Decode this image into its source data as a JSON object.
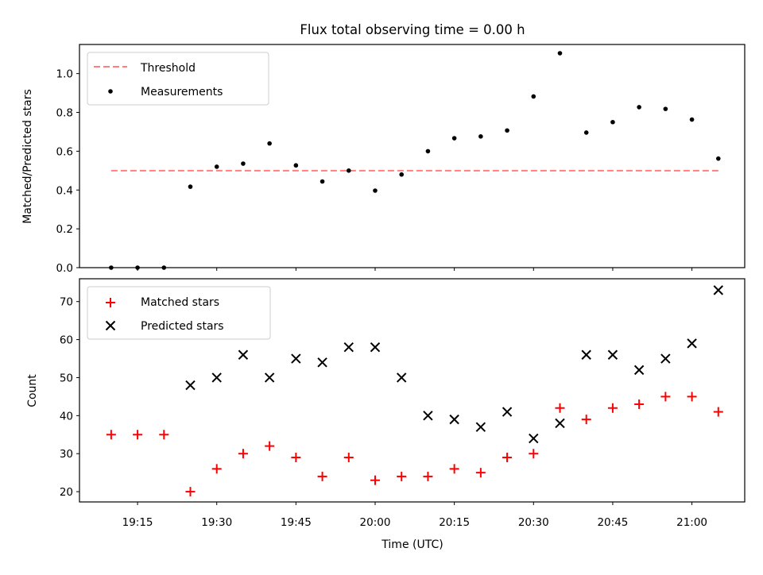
{
  "title": "Flux total observing time = 0.00 h",
  "colors": {
    "threshold": "#ff7f7f",
    "measurement": "#000000",
    "matched": "#ff0000",
    "predicted": "#000000"
  },
  "chart_data": [
    {
      "type": "scatter",
      "title": "Flux total observing time = 0.00 h",
      "xlabel": "",
      "ylabel": "Matched/Predicted stars",
      "ylim": [
        0,
        1.15
      ],
      "yticks": [
        "0.0",
        "0.2",
        "0.4",
        "0.6",
        "0.8",
        "1.0"
      ],
      "x": [
        "19:10",
        "19:15",
        "19:20",
        "19:25",
        "19:30",
        "19:35",
        "19:40",
        "19:45",
        "19:50",
        "19:55",
        "20:00",
        "20:05",
        "20:10",
        "20:15",
        "20:20",
        "20:25",
        "20:30",
        "20:35",
        "20:40",
        "20:45",
        "20:50",
        "20:55",
        "21:00",
        "21:05"
      ],
      "legend": {
        "location": "upper left",
        "entries": [
          "Threshold",
          "Measurements"
        ]
      },
      "series": [
        {
          "name": "Threshold",
          "style": "dashed-line",
          "values": [
            0.5,
            0.5
          ]
        },
        {
          "name": "Measurements",
          "style": "dot",
          "values": [
            0.0,
            0.0,
            0.0,
            0.417,
            0.52,
            0.536,
            0.64,
            0.527,
            0.444,
            0.5,
            0.397,
            0.48,
            0.6,
            0.667,
            0.676,
            0.707,
            0.882,
            1.105,
            0.696,
            0.75,
            0.827,
            0.818,
            0.763,
            0.562
          ]
        }
      ]
    },
    {
      "type": "scatter",
      "xlabel": "Time (UTC)",
      "ylabel": "Count",
      "ylim": [
        17.3,
        76
      ],
      "yticks": [
        "20",
        "30",
        "40",
        "50",
        "60",
        "70"
      ],
      "xticks": [
        "19:15",
        "19:30",
        "19:45",
        "20:00",
        "20:15",
        "20:30",
        "20:45",
        "21:00"
      ],
      "x": [
        "19:10",
        "19:15",
        "19:20",
        "19:25",
        "19:30",
        "19:35",
        "19:40",
        "19:45",
        "19:50",
        "19:55",
        "20:00",
        "20:05",
        "20:10",
        "20:15",
        "20:20",
        "20:25",
        "20:30",
        "20:35",
        "20:40",
        "20:45",
        "20:50",
        "20:55",
        "21:00",
        "21:05"
      ],
      "legend": {
        "location": "upper left",
        "entries": [
          "Matched stars",
          "Predicted stars"
        ]
      },
      "series": [
        {
          "name": "Matched stars",
          "marker": "+",
          "values": [
            35,
            35,
            35,
            20,
            26,
            30,
            32,
            29,
            24,
            29,
            23,
            24,
            24,
            26,
            25,
            29,
            30,
            42,
            39,
            42,
            43,
            45,
            45,
            41
          ]
        },
        {
          "name": "Predicted stars",
          "marker": "x",
          "values": [
            null,
            null,
            null,
            48,
            50,
            56,
            50,
            55,
            54,
            58,
            58,
            50,
            40,
            39,
            37,
            41,
            34,
            38,
            56,
            56,
            52,
            55,
            59,
            73
          ]
        }
      ]
    }
  ]
}
